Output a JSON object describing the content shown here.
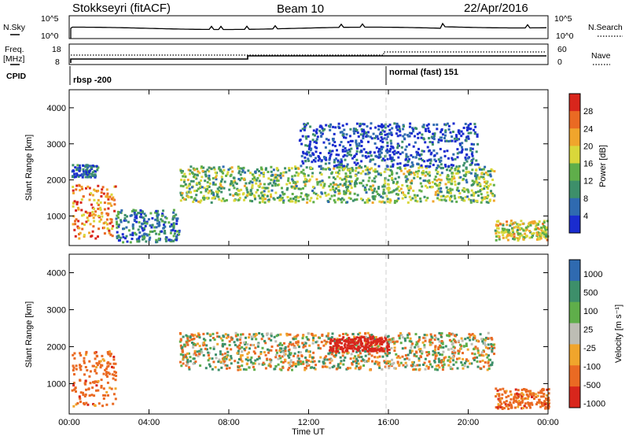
{
  "header": {
    "station": "Stokkseyri (fitACF)",
    "beam": "Beam 10",
    "date": "22/Apr/2016"
  },
  "status": {
    "left_top": "N.Sky",
    "left_freq_1": "Freq.",
    "left_freq_2": "[MHz]",
    "left_cpid": "CPID",
    "right_top": "N.Search",
    "right_bottom": "Nave",
    "sky_ticks": [
      "10^5",
      "10^0"
    ],
    "freq_ticks": [
      "18",
      "8"
    ],
    "nave_ticks": [
      "60",
      "0"
    ],
    "cpid_1": "rbsp -200",
    "cpid_2": "normal (fast) 151"
  },
  "axes": {
    "xlabel": "Time UT",
    "ylabel": "Slant Range [km]",
    "xticks": [
      "00:00",
      "04:00",
      "08:00",
      "12:00",
      "16:00",
      "20:00",
      "00:00"
    ],
    "yticks": [
      "1000",
      "2000",
      "3000",
      "4000"
    ],
    "power_label": "Power [dB]",
    "power_ticks": [
      "28",
      "24",
      "20",
      "16",
      "12",
      "8",
      "4"
    ],
    "velocity_label": "Velocity [m s⁻¹]",
    "velocity_ticks": [
      "1000",
      "500",
      "100",
      "25",
      "-25",
      "-100",
      "-500",
      "-1000"
    ]
  },
  "chart_data": [
    {
      "type": "heatmap",
      "name": "power",
      "x_range_hours": [
        0,
        24
      ],
      "y_range_km": [
        180,
        4500
      ],
      "color_range_db": [
        0,
        32
      ],
      "colors": [
        "#1a2ccf",
        "#2f6ab0",
        "#3d8f6a",
        "#5fae4a",
        "#d9d73a",
        "#f0a52c",
        "#ea6a23",
        "#d8261c"
      ],
      "features": [
        {
          "t": [
            0.1,
            2.3
          ],
          "range": [
            400,
            1900
          ],
          "db": 24
        },
        {
          "t": [
            0.1,
            1.4
          ],
          "range": [
            2100,
            2450
          ],
          "db": 6
        },
        {
          "t": [
            2.3,
            5.5
          ],
          "range": [
            300,
            1200
          ],
          "db": 8
        },
        {
          "t": [
            5.5,
            21.3
          ],
          "range": [
            1400,
            2400
          ],
          "db": 14
        },
        {
          "t": [
            11.5,
            20.5
          ],
          "range": [
            2400,
            3600
          ],
          "db": 4
        },
        {
          "t": [
            21.3,
            24.0
          ],
          "range": [
            350,
            900
          ],
          "db": 18
        }
      ]
    },
    {
      "type": "heatmap",
      "name": "velocity",
      "x_range_hours": [
        0,
        24
      ],
      "y_range_km": [
        180,
        4500
      ],
      "color_range_ms": [
        -1000,
        1000
      ],
      "colors": [
        "#d8261c",
        "#ea6a23",
        "#f0a52c",
        "#bdbdb4",
        "#5fae4a",
        "#3d8f6a",
        "#2f6ab0"
      ],
      "features": [
        {
          "t": [
            0.1,
            2.3
          ],
          "range": [
            400,
            1900
          ],
          "vel": -300
        },
        {
          "t": [
            5.5,
            21.3
          ],
          "range": [
            1400,
            2400
          ],
          "vel": 0
        },
        {
          "t": [
            13.0,
            16.0
          ],
          "range": [
            1900,
            2300
          ],
          "vel": -800
        },
        {
          "t": [
            21.3,
            24.0
          ],
          "range": [
            350,
            900
          ],
          "vel": -300
        }
      ]
    }
  ],
  "colors": {
    "background": "#ffffff",
    "ground_scatter": "#bdbdb4",
    "divider": "#cfcfcf"
  }
}
